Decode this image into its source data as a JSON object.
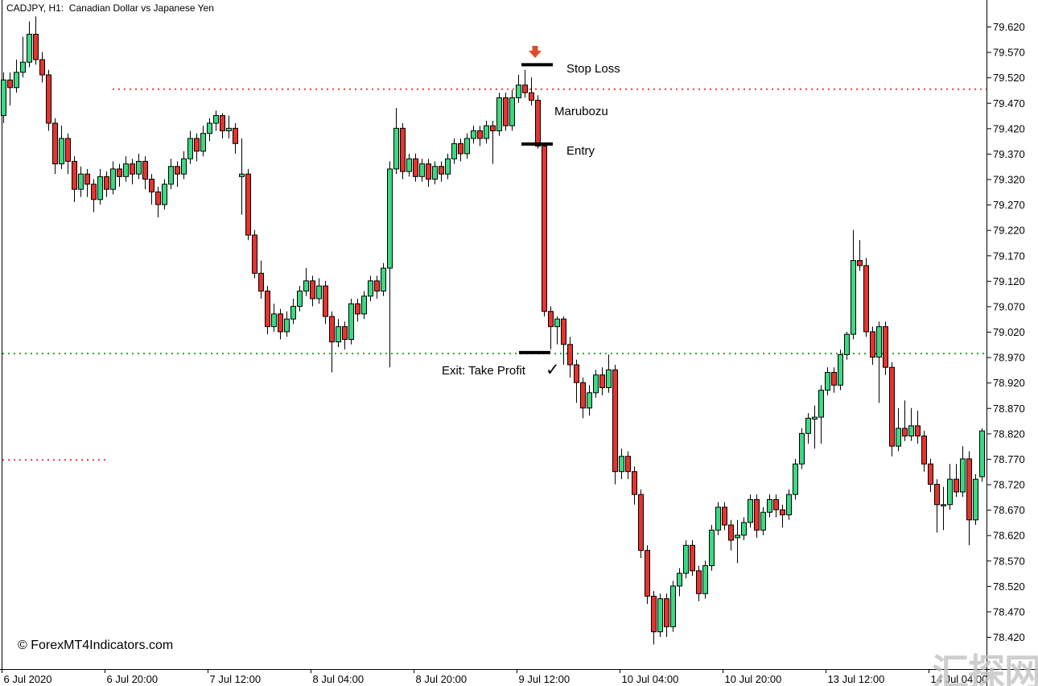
{
  "window": {
    "title": "CADJPY, H1:  Canadian Dollar vs Japanese Yen"
  },
  "copyright": {
    "text": "© ForexMT4Indicators.com"
  },
  "watermark": {
    "text": "汇探网",
    "color": "#c3c3c3"
  },
  "annotations": {
    "stop_loss": {
      "label": "Stop Loss",
      "price": 79.545
    },
    "marubozu": {
      "label": "Marubozu"
    },
    "entry": {
      "label": "Entry",
      "price": 79.389
    },
    "exit": {
      "label": "Exit: Take Profit",
      "price": 78.979,
      "checkmark": "✓"
    },
    "signal_arrow": {
      "direction": "down",
      "color": "#e04a28",
      "price": 79.582
    }
  },
  "chart_data": {
    "type": "candlestick",
    "symbol": "CADJPY",
    "timeframe": "H1",
    "description": "Canadian Dollar vs Japanese Yen",
    "up_color": "#3dd882",
    "down_color": "#e5342d",
    "wick_color": "#000000",
    "grid": false,
    "ylim": [
      78.4,
      79.64
    ],
    "price_axis_labels": [
      "79.620",
      "79.570",
      "79.520",
      "79.470",
      "79.420",
      "79.370",
      "79.320",
      "79.270",
      "79.220",
      "79.170",
      "79.120",
      "79.070",
      "79.020",
      "78.970",
      "78.920",
      "78.870",
      "78.820",
      "78.770",
      "78.720",
      "78.670",
      "78.620",
      "78.570",
      "78.520",
      "78.470",
      "78.420"
    ],
    "time_axis_labels": [
      "6 Jul 2020",
      "6 Jul 20:00",
      "7 Jul 12:00",
      "8 Jul 04:00",
      "8 Jul 20:00",
      "9 Jul 12:00",
      "10 Jul 04:00",
      "10 Jul 20:00",
      "13 Jul 12:00",
      "14 Jul 04:00"
    ],
    "levels": [
      {
        "name": "resistance-dotted-line",
        "price": 79.497,
        "color": "#fa3b3b",
        "style": "dotted",
        "x_start": 140,
        "x_end": 1226
      },
      {
        "name": "take-profit-dotted-line",
        "price": 78.977,
        "color": "#28a428",
        "style": "dotted",
        "x_start": 3,
        "x_end": 1226
      },
      {
        "name": "left-support-dotted-line",
        "price": 78.768,
        "color": "#fa3b3b",
        "style": "dotted",
        "x_start": 3,
        "x_end": 133
      }
    ],
    "bars": [
      [
        79.445,
        79.53,
        79.43,
        79.515
      ],
      [
        79.515,
        79.53,
        79.465,
        79.5
      ],
      [
        79.5,
        79.555,
        79.49,
        79.53
      ],
      [
        79.53,
        79.6,
        79.52,
        79.55
      ],
      [
        79.55,
        79.63,
        79.54,
        79.605
      ],
      [
        79.605,
        79.64,
        79.545,
        79.555
      ],
      [
        79.555,
        79.57,
        79.51,
        79.525
      ],
      [
        79.525,
        79.535,
        79.415,
        79.43
      ],
      [
        79.43,
        79.44,
        79.33,
        79.35
      ],
      [
        79.35,
        79.425,
        79.34,
        79.4
      ],
      [
        79.4,
        79.41,
        79.33,
        79.355
      ],
      [
        79.355,
        79.365,
        79.275,
        79.3
      ],
      [
        79.3,
        79.345,
        79.285,
        79.33
      ],
      [
        79.33,
        79.34,
        79.285,
        79.31
      ],
      [
        79.31,
        79.32,
        79.255,
        79.28
      ],
      [
        79.28,
        79.34,
        79.27,
        79.325
      ],
      [
        79.325,
        79.335,
        79.285,
        79.3
      ],
      [
        79.3,
        79.355,
        79.29,
        79.34
      ],
      [
        79.34,
        79.35,
        79.305,
        79.325
      ],
      [
        79.325,
        79.365,
        79.315,
        79.35
      ],
      [
        79.35,
        79.36,
        79.31,
        79.33
      ],
      [
        79.33,
        79.37,
        79.32,
        79.355
      ],
      [
        79.355,
        79.365,
        79.3,
        79.32
      ],
      [
        79.32,
        79.33,
        79.27,
        79.295
      ],
      [
        79.295,
        79.305,
        79.245,
        79.27
      ],
      [
        79.27,
        79.32,
        79.26,
        79.31
      ],
      [
        79.31,
        79.36,
        79.3,
        79.345
      ],
      [
        79.345,
        79.355,
        79.305,
        79.33
      ],
      [
        79.33,
        79.375,
        79.32,
        79.36
      ],
      [
        79.36,
        79.415,
        79.35,
        79.4
      ],
      [
        79.4,
        79.41,
        79.355,
        79.375
      ],
      [
        79.375,
        79.425,
        79.365,
        79.41
      ],
      [
        79.41,
        79.44,
        79.395,
        79.43
      ],
      [
        79.43,
        79.455,
        79.415,
        79.445
      ],
      [
        79.445,
        79.45,
        79.4,
        79.415
      ],
      [
        79.415,
        79.445,
        79.4,
        79.42
      ],
      [
        79.42,
        79.43,
        79.37,
        79.39
      ],
      [
        79.325,
        79.4,
        79.25,
        79.33
      ],
      [
        79.33,
        79.34,
        79.2,
        79.21
      ],
      [
        79.21,
        79.22,
        79.125,
        79.135
      ],
      [
        79.135,
        79.16,
        79.085,
        79.1
      ],
      [
        79.1,
        79.11,
        79.015,
        79.03
      ],
      [
        79.03,
        79.075,
        79.02,
        79.055
      ],
      [
        79.055,
        79.065,
        79.005,
        79.02
      ],
      [
        79.02,
        79.06,
        79.01,
        79.045
      ],
      [
        79.045,
        79.085,
        79.035,
        79.07
      ],
      [
        79.07,
        79.11,
        79.06,
        79.1
      ],
      [
        79.1,
        79.145,
        79.09,
        79.12
      ],
      [
        79.12,
        79.13,
        79.07,
        79.085
      ],
      [
        79.085,
        79.125,
        79.075,
        79.11
      ],
      [
        79.11,
        79.12,
        79.035,
        79.05
      ],
      [
        79.05,
        79.06,
        78.94,
        79.0
      ],
      [
        79.0,
        79.045,
        78.99,
        79.03
      ],
      [
        79.03,
        79.04,
        78.985,
        79.005
      ],
      [
        79.005,
        79.085,
        78.995,
        79.075
      ],
      [
        79.075,
        79.085,
        79.04,
        79.055
      ],
      [
        79.055,
        79.1,
        79.045,
        79.09
      ],
      [
        79.09,
        79.13,
        79.08,
        79.12
      ],
      [
        79.12,
        79.13,
        79.085,
        79.1
      ],
      [
        79.1,
        79.155,
        79.09,
        79.145
      ],
      [
        79.145,
        79.355,
        78.95,
        79.34
      ],
      [
        79.34,
        79.46,
        79.33,
        79.42
      ],
      [
        79.42,
        79.43,
        79.32,
        79.335
      ],
      [
        79.335,
        79.37,
        79.325,
        79.36
      ],
      [
        79.36,
        79.37,
        79.315,
        79.325
      ],
      [
        79.325,
        79.36,
        79.315,
        79.35
      ],
      [
        79.35,
        79.36,
        79.305,
        79.32
      ],
      [
        79.32,
        79.355,
        79.31,
        79.345
      ],
      [
        79.345,
        79.355,
        79.315,
        79.33
      ],
      [
        79.33,
        79.37,
        79.32,
        79.36
      ],
      [
        79.36,
        79.4,
        79.35,
        79.39
      ],
      [
        79.39,
        79.4,
        79.355,
        79.37
      ],
      [
        79.37,
        79.41,
        79.36,
        79.4
      ],
      [
        79.4,
        79.425,
        79.39,
        79.415
      ],
      [
        79.415,
        79.425,
        79.385,
        79.4
      ],
      [
        79.4,
        79.435,
        79.39,
        79.425
      ],
      [
        79.425,
        79.435,
        79.35,
        79.415
      ],
      [
        79.415,
        79.49,
        79.405,
        79.48
      ],
      [
        79.48,
        79.49,
        79.415,
        79.425
      ],
      [
        79.425,
        79.495,
        79.415,
        79.48
      ],
      [
        79.48,
        79.525,
        79.47,
        79.505
      ],
      [
        79.505,
        79.535,
        79.48,
        79.49
      ],
      [
        79.49,
        79.52,
        79.465,
        79.475
      ],
      [
        79.475,
        79.485,
        79.38,
        79.385
      ],
      [
        79.385,
        79.39,
        79.05,
        79.06
      ],
      [
        79.06,
        79.07,
        78.985,
        79.03
      ],
      [
        79.03,
        79.05,
        78.995,
        79.045
      ],
      [
        79.045,
        79.05,
        78.955,
        78.995
      ],
      [
        78.995,
        79.01,
        78.93,
        78.955
      ],
      [
        78.955,
        78.965,
        78.88,
        78.92
      ],
      [
        78.92,
        78.93,
        78.85,
        78.87
      ],
      [
        78.87,
        78.915,
        78.855,
        78.9
      ],
      [
        78.9,
        78.945,
        78.89,
        78.935
      ],
      [
        78.935,
        78.95,
        78.895,
        78.91
      ],
      [
        78.91,
        78.975,
        78.9,
        78.945
      ],
      [
        78.945,
        78.955,
        78.72,
        78.745
      ],
      [
        78.745,
        78.79,
        78.73,
        78.775
      ],
      [
        78.775,
        78.785,
        78.73,
        78.745
      ],
      [
        78.745,
        78.755,
        78.68,
        78.7
      ],
      [
        78.7,
        78.71,
        78.575,
        78.59
      ],
      [
        78.59,
        78.6,
        78.485,
        78.5
      ],
      [
        78.5,
        78.51,
        78.405,
        78.43
      ],
      [
        78.43,
        78.505,
        78.42,
        78.495
      ],
      [
        78.495,
        78.505,
        78.42,
        78.44
      ],
      [
        78.44,
        78.53,
        78.43,
        78.52
      ],
      [
        78.52,
        78.555,
        78.5,
        78.545
      ],
      [
        78.545,
        78.61,
        78.535,
        78.6
      ],
      [
        78.6,
        78.61,
        78.54,
        78.55
      ],
      [
        78.55,
        78.56,
        78.49,
        78.505
      ],
      [
        78.505,
        78.57,
        78.495,
        78.56
      ],
      [
        78.56,
        78.64,
        78.55,
        78.63
      ],
      [
        78.63,
        78.685,
        78.62,
        78.675
      ],
      [
        78.675,
        78.685,
        78.63,
        78.64
      ],
      [
        78.64,
        78.65,
        78.59,
        78.61
      ],
      [
        78.615,
        78.65,
        78.565,
        78.62
      ],
      [
        78.62,
        78.655,
        78.61,
        78.645
      ],
      [
        78.645,
        78.7,
        78.635,
        78.69
      ],
      [
        78.69,
        78.7,
        78.615,
        78.63
      ],
      [
        78.63,
        78.675,
        78.62,
        78.665
      ],
      [
        78.665,
        78.7,
        78.655,
        78.69
      ],
      [
        78.69,
        78.7,
        78.655,
        78.67
      ],
      [
        78.67,
        78.68,
        78.635,
        78.66
      ],
      [
        78.66,
        78.71,
        78.65,
        78.7
      ],
      [
        78.7,
        78.77,
        78.69,
        78.76
      ],
      [
        78.76,
        78.83,
        78.75,
        78.82
      ],
      [
        78.82,
        78.86,
        78.8,
        78.85
      ],
      [
        78.848,
        78.875,
        78.79,
        78.852
      ],
      [
        78.852,
        78.915,
        78.8,
        78.905
      ],
      [
        78.905,
        78.95,
        78.895,
        78.94
      ],
      [
        78.94,
        78.95,
        78.9,
        78.915
      ],
      [
        78.915,
        78.985,
        78.905,
        78.975
      ],
      [
        78.975,
        79.02,
        78.965,
        79.015
      ],
      [
        79.015,
        79.22,
        79.005,
        79.16
      ],
      [
        79.16,
        79.2,
        79.14,
        79.15
      ],
      [
        79.15,
        79.165,
        79.01,
        79.02
      ],
      [
        79.02,
        79.03,
        78.955,
        78.97
      ],
      [
        78.97,
        79.04,
        78.88,
        79.03
      ],
      [
        79.03,
        79.04,
        78.935,
        78.95
      ],
      [
        78.95,
        78.96,
        78.775,
        78.795
      ],
      [
        78.795,
        78.87,
        78.785,
        78.83
      ],
      [
        78.83,
        78.885,
        78.805,
        78.815
      ],
      [
        78.815,
        78.87,
        78.805,
        78.835
      ],
      [
        78.835,
        78.865,
        78.8,
        78.815
      ],
      [
        78.815,
        78.825,
        78.745,
        78.76
      ],
      [
        78.76,
        78.77,
        78.705,
        78.72
      ],
      [
        78.72,
        78.73,
        78.625,
        78.68
      ],
      [
        78.68,
        78.715,
        78.63,
        78.68
      ],
      [
        78.68,
        78.76,
        78.67,
        78.73
      ],
      [
        78.73,
        78.76,
        78.695,
        78.705
      ],
      [
        78.705,
        78.795,
        78.695,
        78.77
      ],
      [
        78.77,
        78.785,
        78.6,
        78.65
      ],
      [
        78.65,
        78.74,
        78.64,
        78.73
      ],
      [
        78.735,
        78.83,
        78.725,
        78.825
      ]
    ]
  }
}
